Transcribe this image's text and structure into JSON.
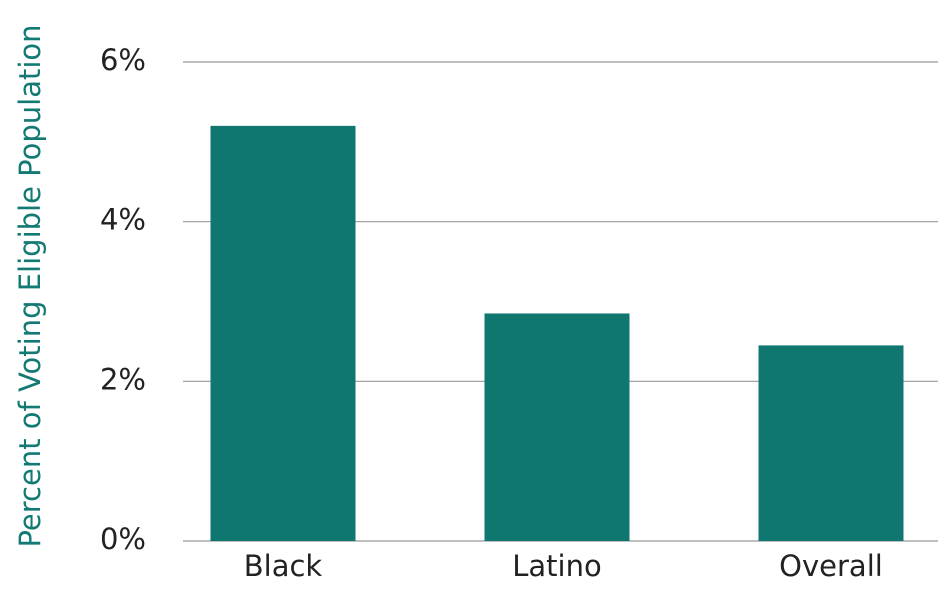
{
  "chart_data": {
    "type": "bar",
    "y_label": "Percent of Voting Eligible Population",
    "categories": [
      "Black",
      "Latino",
      "Overall"
    ],
    "values": [
      5.2,
      2.85,
      2.45
    ],
    "color": "#0f7670",
    "ylim": [
      0,
      6
    ],
    "yticks": [
      {
        "value": 0,
        "label": "0%"
      },
      {
        "value": 2,
        "label": "2%"
      },
      {
        "value": 4,
        "label": "4%"
      },
      {
        "value": 6,
        "label": "6%"
      }
    ],
    "grid": true
  }
}
